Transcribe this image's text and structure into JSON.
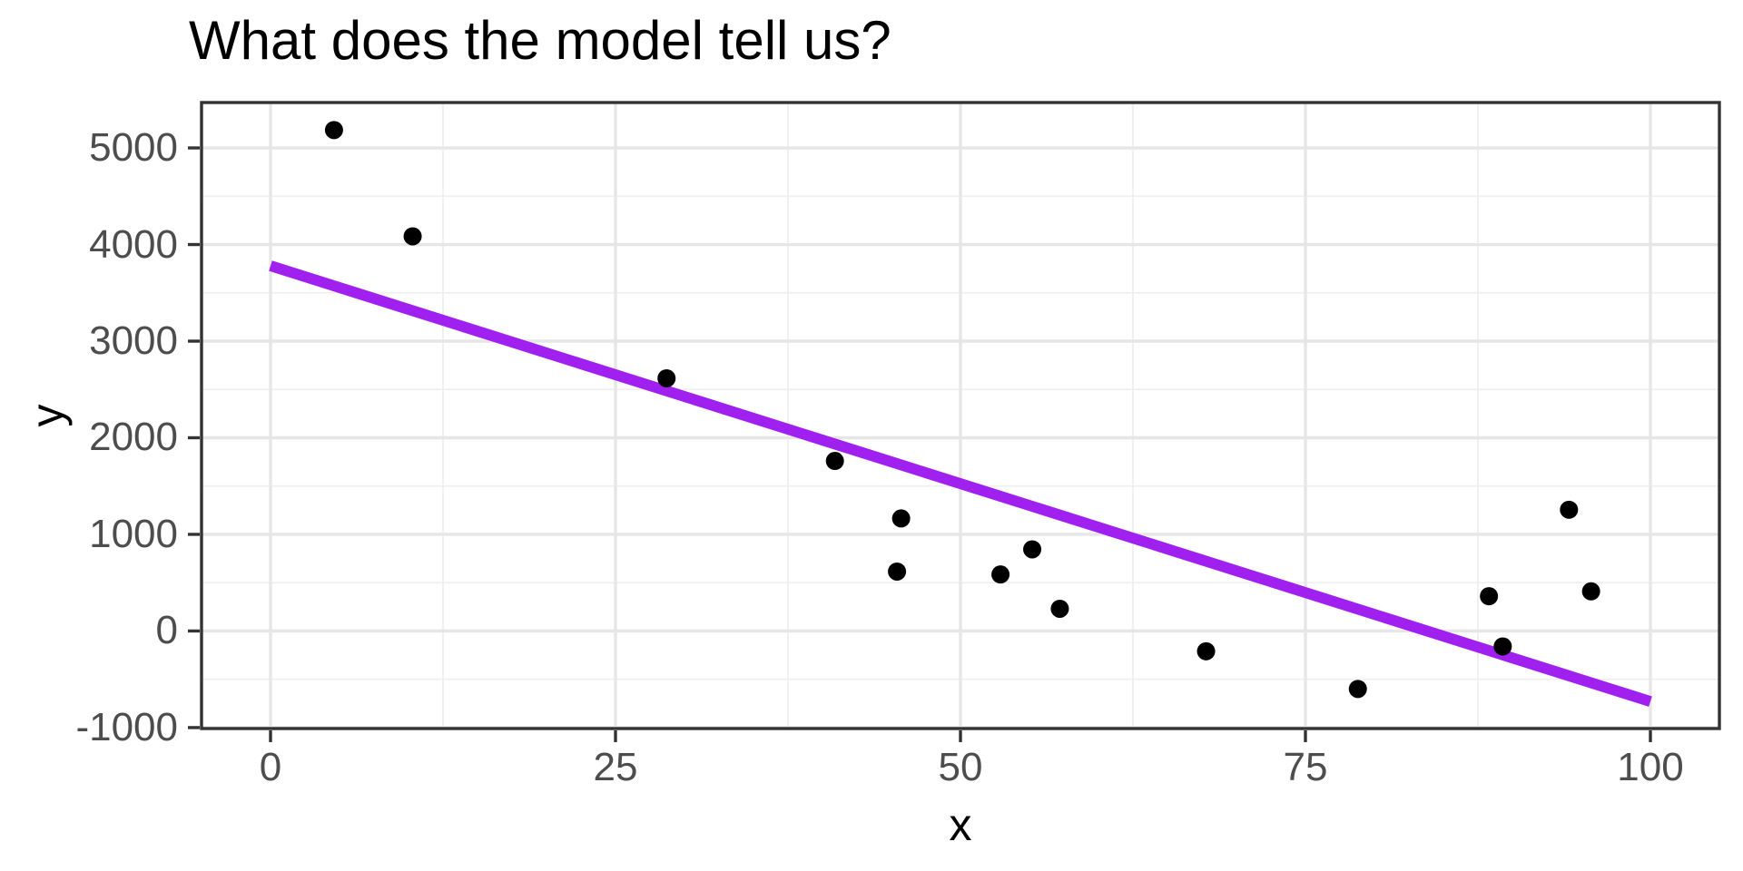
{
  "chart_data": {
    "type": "scatter",
    "title": "What does the model tell us?",
    "xlabel": "x",
    "ylabel": "y",
    "x_domain": [
      -5,
      105
    ],
    "y_domain": [
      -1010,
      5470
    ],
    "grid": "on",
    "legend": "none",
    "x_ticks": [
      {
        "v": 0,
        "label": "0"
      },
      {
        "v": 25,
        "label": "25"
      },
      {
        "v": 50,
        "label": "50"
      },
      {
        "v": 75,
        "label": "75"
      },
      {
        "v": 100,
        "label": "100"
      }
    ],
    "y_ticks": [
      {
        "v": -1000,
        "label": "-1000"
      },
      {
        "v": 0,
        "label": "0"
      },
      {
        "v": 1000,
        "label": "1000"
      },
      {
        "v": 2000,
        "label": "2000"
      },
      {
        "v": 3000,
        "label": "3000"
      },
      {
        "v": 4000,
        "label": "4000"
      },
      {
        "v": 5000,
        "label": "5000"
      }
    ],
    "x_minor_ticks": [
      12.5,
      37.5,
      62.5,
      87.5
    ],
    "y_minor_ticks": [
      -500,
      500,
      1500,
      2500,
      3500,
      4500
    ],
    "points": [
      {
        "x": 4.6,
        "y": 5185
      },
      {
        "x": 10.3,
        "y": 4085
      },
      {
        "x": 28.7,
        "y": 2615
      },
      {
        "x": 40.9,
        "y": 1760
      },
      {
        "x": 45.7,
        "y": 1165
      },
      {
        "x": 45.4,
        "y": 615
      },
      {
        "x": 52.9,
        "y": 585
      },
      {
        "x": 55.2,
        "y": 845
      },
      {
        "x": 57.2,
        "y": 230
      },
      {
        "x": 67.8,
        "y": -210
      },
      {
        "x": 78.8,
        "y": -600
      },
      {
        "x": 88.3,
        "y": 360
      },
      {
        "x": 89.3,
        "y": -160
      },
      {
        "x": 94.1,
        "y": 1255
      },
      {
        "x": 95.7,
        "y": 410
      }
    ],
    "trend_line": {
      "x0": 0,
      "y0": 3780,
      "x1": 100,
      "y1": -730
    },
    "colors": {
      "point": "#000000",
      "trend_line": "#a020f0",
      "grid_major": "#e6e6e6",
      "grid_minor": "#efefef",
      "panel_border": "#333333",
      "tick_mark": "#333333",
      "tick_label": "#4d4d4d",
      "title": "#000000"
    }
  }
}
